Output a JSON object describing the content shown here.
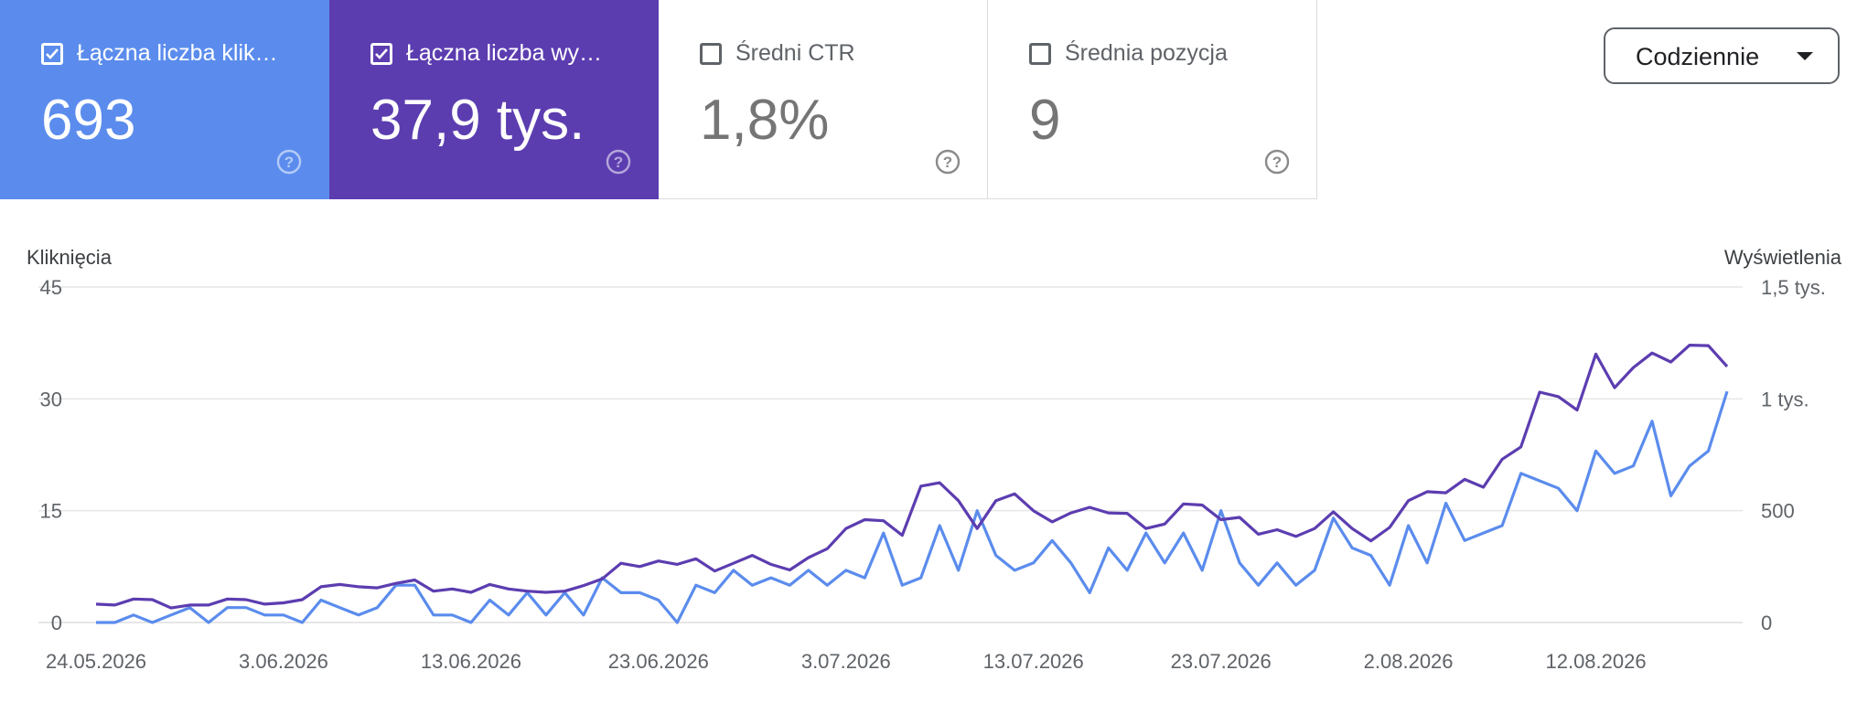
{
  "cards": [
    {
      "label": "Łączna liczba klik…",
      "value": "693",
      "checked": true
    },
    {
      "label": "Łączna liczba wy…",
      "value": "37,9 tys.",
      "checked": true
    },
    {
      "label": "Średni CTR",
      "value": "1,8%",
      "checked": false
    },
    {
      "label": "Średnia pozycja",
      "value": "9",
      "checked": false
    }
  ],
  "dropdown": {
    "label": "Codziennie"
  },
  "colors": {
    "clicks": "#5b8ced",
    "impressions": "#5c3db0",
    "grid": "#e6e6e6",
    "text": "#5f6368"
  },
  "chart_data": {
    "type": "line",
    "left_axis": {
      "label": "Kliknięcia",
      "ticks": [
        "45",
        "30",
        "15",
        "0"
      ],
      "ylim": [
        0,
        45
      ]
    },
    "right_axis": {
      "label": "Wyświetlenia",
      "ticks": [
        "1,5 tys.",
        "1 tys.",
        "500",
        "0"
      ],
      "ylim": [
        0,
        1500
      ]
    },
    "x_ticks": [
      "24.05.2026",
      "3.06.2026",
      "13.06.2026",
      "23.06.2026",
      "3.07.2026",
      "13.07.2026",
      "23.07.2026",
      "2.08.2026",
      "12.08.2026"
    ],
    "grid": true,
    "series": [
      {
        "key": "clicks",
        "axis": "left",
        "values": [
          0,
          0,
          1,
          0,
          1,
          2,
          0,
          2,
          2,
          1,
          1,
          0,
          3,
          2,
          1,
          2,
          5,
          5,
          1,
          1,
          0,
          3,
          1,
          4,
          1,
          4,
          1,
          6,
          4,
          4,
          3,
          0,
          5,
          4,
          7,
          5,
          6,
          5,
          7,
          5,
          7,
          6,
          12,
          5,
          6,
          13,
          7,
          15,
          9,
          7,
          8,
          11,
          8,
          4,
          10,
          7,
          12,
          8,
          12,
          7,
          15,
          8,
          5,
          8,
          5,
          7,
          14,
          10,
          9,
          5,
          13,
          8,
          16,
          11,
          12,
          13,
          20,
          19,
          18,
          15,
          23,
          20,
          21,
          27,
          17,
          21,
          23,
          31
        ]
      },
      {
        "key": "impressions",
        "axis": "right",
        "values": [
          82,
          78,
          105,
          102,
          65,
          78,
          78,
          105,
          102,
          82,
          88,
          102,
          160,
          170,
          160,
          155,
          175,
          190,
          140,
          150,
          135,
          170,
          150,
          140,
          135,
          140,
          165,
          195,
          265,
          250,
          275,
          260,
          285,
          230,
          265,
          300,
          260,
          235,
          290,
          330,
          420,
          460,
          455,
          390,
          610,
          625,
          545,
          420,
          545,
          575,
          500,
          450,
          490,
          515,
          490,
          488,
          420,
          440,
          530,
          525,
          460,
          470,
          395,
          415,
          385,
          420,
          495,
          420,
          365,
          425,
          545,
          585,
          580,
          640,
          605,
          730,
          785,
          1030,
          1010,
          950,
          1200,
          1050,
          1140,
          1205,
          1165,
          1240,
          1238,
          1145
        ]
      }
    ]
  }
}
